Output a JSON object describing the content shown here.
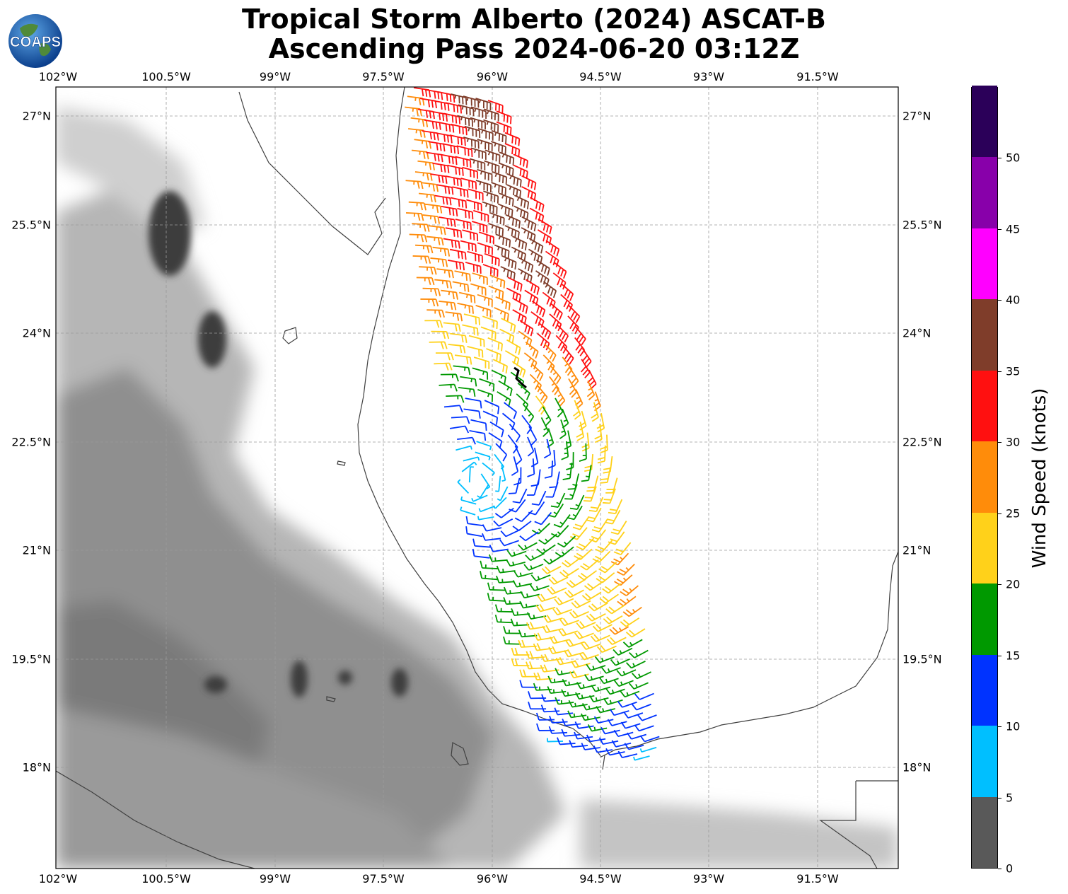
{
  "title": {
    "line1": "Tropical Storm Alberto (2024) ASCAT-B",
    "line2": "Ascending Pass 2024-06-20 03:12Z"
  },
  "logo": {
    "text": "COAPS"
  },
  "map": {
    "lon_ticks": [
      "102°W",
      "100.5°W",
      "99°W",
      "97.5°W",
      "96°W",
      "94.5°W",
      "93°W",
      "91.5°W"
    ],
    "lat_ticks": [
      "27°N",
      "25.5°N",
      "24°N",
      "22.5°N",
      "21°N",
      "19.5°N",
      "18°N"
    ],
    "extent": {
      "lon_min": -102,
      "lon_max": -90.35,
      "lat_min": 16.6,
      "lat_max": 27.4
    },
    "gridlines": true,
    "storm_center_marker": "black tropical-storm symbol near 95.75°W 23.4°N",
    "swath": {
      "center": {
        "lon": -95.95,
        "lat": 22.05
      },
      "description": "wind barbs along a NNW-SSE swath off the Mexican Gulf coast"
    }
  },
  "colorbar": {
    "label": "Wind Speed (knots)",
    "tick_labels": [
      "0",
      "5",
      "10",
      "15",
      "20",
      "25",
      "30",
      "35",
      "40",
      "45",
      "50"
    ],
    "bins": [
      {
        "min": 0,
        "max": 5,
        "color": "#595959"
      },
      {
        "min": 5,
        "max": 10,
        "color": "#00bfff"
      },
      {
        "min": 10,
        "max": 15,
        "color": "#0033ff"
      },
      {
        "min": 15,
        "max": 20,
        "color": "#009900"
      },
      {
        "min": 20,
        "max": 25,
        "color": "#ffd11a"
      },
      {
        "min": 25,
        "max": 30,
        "color": "#ff8c0a"
      },
      {
        "min": 30,
        "max": 35,
        "color": "#ff1010"
      },
      {
        "min": 35,
        "max": 40,
        "color": "#7f3d2a"
      },
      {
        "min": 40,
        "max": 45,
        "color": "#ff00ff"
      },
      {
        "min": 45,
        "max": 50,
        "color": "#8800aa"
      },
      {
        "min": 50,
        "max": 55,
        "color": "#2b0059"
      }
    ]
  }
}
